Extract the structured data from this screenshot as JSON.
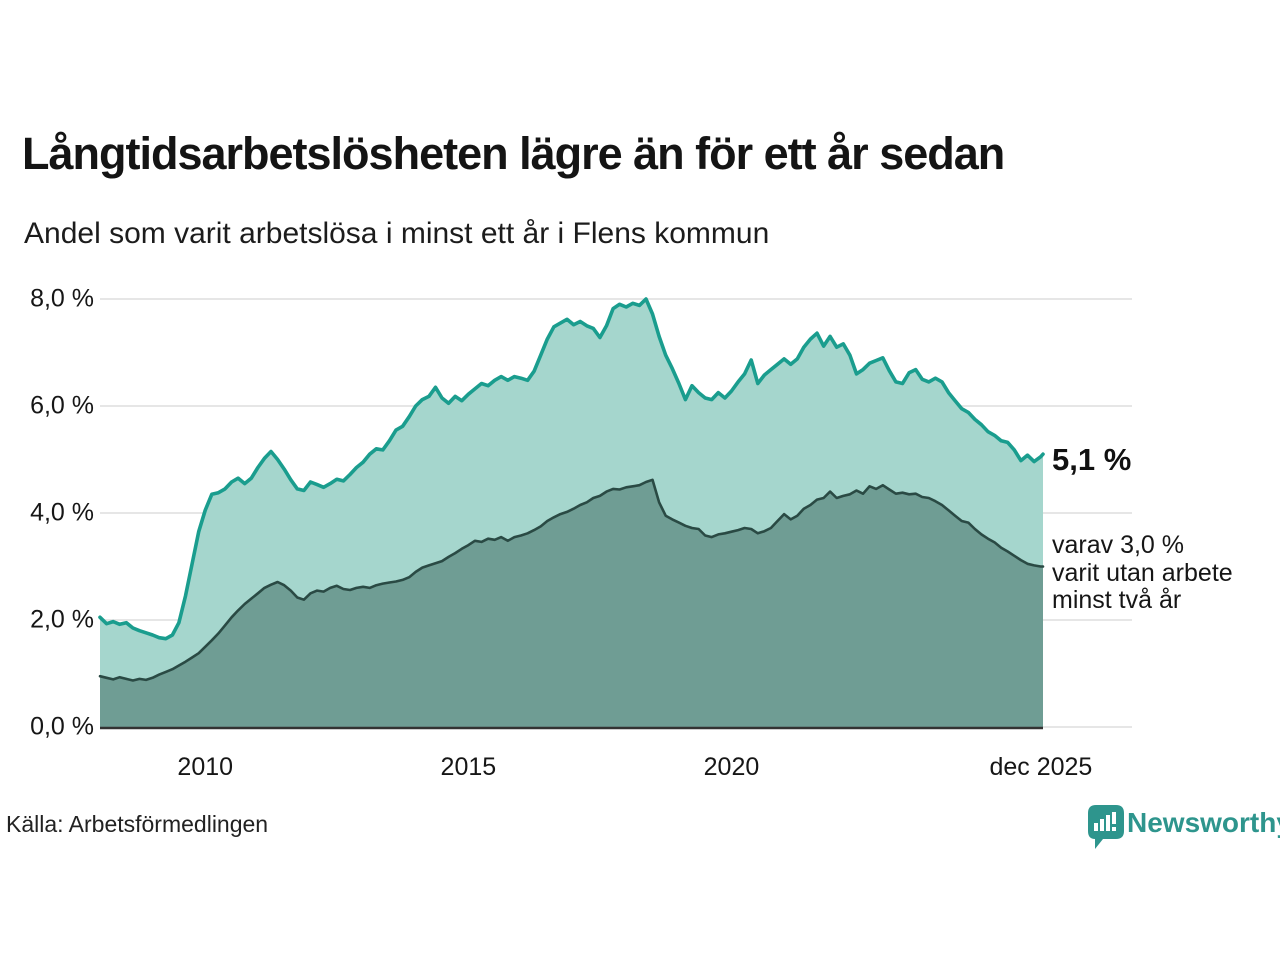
{
  "header": {
    "title": "Långtidsarbetslösheten lägre än för ett år sedan",
    "subtitle": "Andel som varit arbetslösa i minst ett år i Flens kommun"
  },
  "annotations": {
    "primary": "5,1 %",
    "secondary_lines": [
      "varav 3,0 %",
      "varit utan arbete",
      "minst två år"
    ]
  },
  "footer": {
    "source": "Källa: Arbetsförmedlingen",
    "logo_text": "Newsworthy"
  },
  "colors": {
    "accent_teal": "#1a9d8e",
    "light_fill": "#a5d6cd",
    "dark_fill": "#6f9d94",
    "dark_stroke": "#2a4a44",
    "grid": "#dedede",
    "axis": "#333333",
    "logo_teal": "#2e958d",
    "text": "#161616"
  },
  "chart_data": {
    "type": "area",
    "title": "Långtidsarbetslösheten lägre än för ett år sedan",
    "subtitle": "Andel som varit arbetslösa i minst ett år i Flens kommun",
    "unit": "%",
    "x_start": 2008.0,
    "x_step": 0.125,
    "x_end": 2025.92,
    "ylim": [
      0,
      8.6
    ],
    "grid": true,
    "yticks": [
      {
        "value": 0,
        "label": "0,0 %"
      },
      {
        "value": 2,
        "label": "2,0 %"
      },
      {
        "value": 4,
        "label": "4,0 %"
      },
      {
        "value": 6,
        "label": "6,0 %"
      },
      {
        "value": 8,
        "label": "8,0 %"
      }
    ],
    "xticks": [
      {
        "year": 2010,
        "label": "2010"
      },
      {
        "year": 2015,
        "label": "2015"
      },
      {
        "year": 2020,
        "label": "2020"
      },
      {
        "year": 2025.88,
        "label": "dec 2025"
      }
    ],
    "series": [
      {
        "name": "Arbetslösa minst ett år",
        "latest_label": "5,1 %",
        "values": [
          2.05,
          1.93,
          1.97,
          1.92,
          1.95,
          1.85,
          1.8,
          1.76,
          1.72,
          1.67,
          1.65,
          1.72,
          1.95,
          2.45,
          3.05,
          3.65,
          4.05,
          4.35,
          4.38,
          4.45,
          4.58,
          4.65,
          4.55,
          4.65,
          4.85,
          5.02,
          5.15,
          5.0,
          4.82,
          4.62,
          4.45,
          4.42,
          4.58,
          4.53,
          4.48,
          4.55,
          4.63,
          4.6,
          4.72,
          4.85,
          4.95,
          5.1,
          5.2,
          5.18,
          5.35,
          5.55,
          5.62,
          5.8,
          6.0,
          6.12,
          6.18,
          6.35,
          6.15,
          6.05,
          6.18,
          6.1,
          6.22,
          6.32,
          6.42,
          6.38,
          6.48,
          6.55,
          6.48,
          6.55,
          6.52,
          6.48,
          6.65,
          6.95,
          7.25,
          7.48,
          7.55,
          7.62,
          7.52,
          7.58,
          7.5,
          7.45,
          7.28,
          7.5,
          7.82,
          7.9,
          7.85,
          7.92,
          7.88,
          8.0,
          7.72,
          7.3,
          6.95,
          6.7,
          6.42,
          6.12,
          6.38,
          6.25,
          6.15,
          6.12,
          6.25,
          6.15,
          6.28,
          6.45,
          6.6,
          6.86,
          6.42,
          6.58,
          6.68,
          6.78,
          6.88,
          6.78,
          6.88,
          7.1,
          7.25,
          7.36,
          7.12,
          7.3,
          7.1,
          7.16,
          6.95,
          6.6,
          6.68,
          6.8,
          6.85,
          6.9,
          6.66,
          6.45,
          6.42,
          6.62,
          6.68,
          6.5,
          6.45,
          6.52,
          6.45,
          6.25,
          6.1,
          5.95,
          5.88,
          5.75,
          5.65,
          5.52,
          5.45,
          5.35,
          5.32,
          5.18,
          4.98,
          5.08,
          4.96,
          5.05,
          5.1
        ]
      },
      {
        "name": "Varav utan arbete minst två år",
        "latest_label": "varav 3,0 % varit utan arbete minst två år",
        "values": [
          0.95,
          0.92,
          0.89,
          0.93,
          0.9,
          0.87,
          0.9,
          0.88,
          0.92,
          0.98,
          1.03,
          1.08,
          1.15,
          1.22,
          1.3,
          1.38,
          1.5,
          1.62,
          1.75,
          1.9,
          2.05,
          2.18,
          2.3,
          2.4,
          2.5,
          2.6,
          2.66,
          2.71,
          2.65,
          2.55,
          2.42,
          2.38,
          2.5,
          2.55,
          2.53,
          2.6,
          2.64,
          2.58,
          2.56,
          2.6,
          2.62,
          2.6,
          2.65,
          2.68,
          2.7,
          2.72,
          2.75,
          2.8,
          2.9,
          2.98,
          3.02,
          3.06,
          3.1,
          3.18,
          3.25,
          3.33,
          3.4,
          3.48,
          3.46,
          3.52,
          3.5,
          3.55,
          3.48,
          3.55,
          3.58,
          3.62,
          3.68,
          3.75,
          3.85,
          3.92,
          3.98,
          4.02,
          4.08,
          4.15,
          4.2,
          4.28,
          4.32,
          4.4,
          4.45,
          4.44,
          4.48,
          4.5,
          4.52,
          4.58,
          4.62,
          4.2,
          3.95,
          3.88,
          3.82,
          3.76,
          3.72,
          3.7,
          3.58,
          3.55,
          3.6,
          3.62,
          3.65,
          3.68,
          3.72,
          3.7,
          3.62,
          3.66,
          3.72,
          3.85,
          3.98,
          3.88,
          3.95,
          4.08,
          4.15,
          4.25,
          4.28,
          4.4,
          4.28,
          4.32,
          4.35,
          4.42,
          4.36,
          4.5,
          4.45,
          4.52,
          4.44,
          4.36,
          4.38,
          4.35,
          4.36,
          4.3,
          4.28,
          4.22,
          4.15,
          4.05,
          3.95,
          3.85,
          3.82,
          3.7,
          3.6,
          3.52,
          3.45,
          3.35,
          3.28,
          3.2,
          3.12,
          3.05,
          3.02,
          3.0,
          3.0
        ]
      }
    ]
  }
}
